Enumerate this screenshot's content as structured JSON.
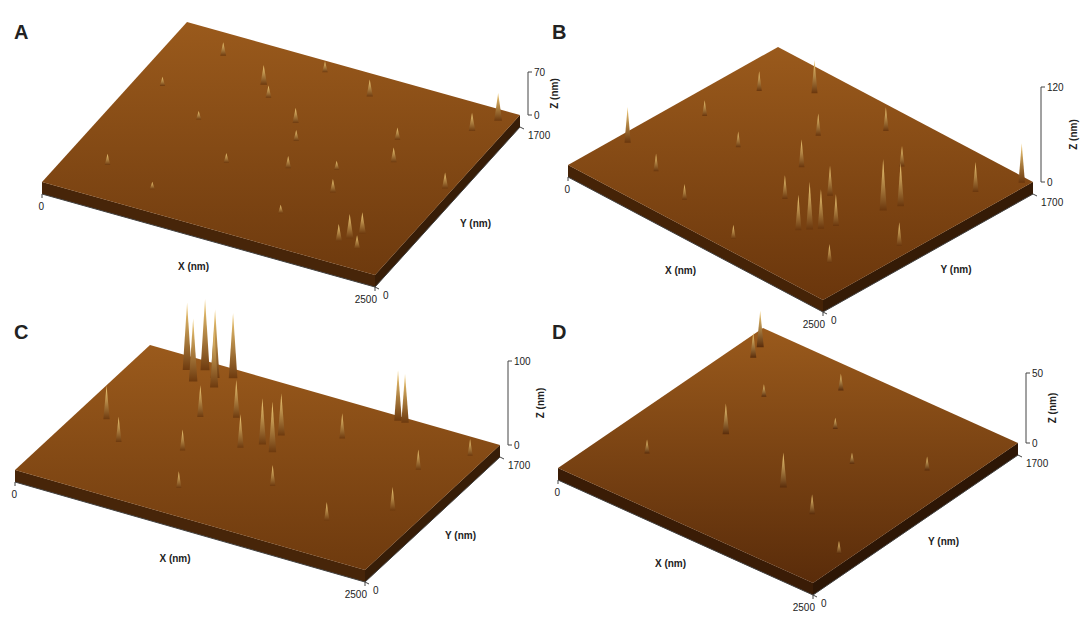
{
  "chart_data": [
    {
      "panel_label": "A",
      "type": "surface3d",
      "x_label": "X (nm)",
      "y_label": "Y (nm)",
      "z_label": "Z (nm)",
      "xlim": [
        0,
        2500
      ],
      "ylim": [
        0,
        1700
      ],
      "zlim": [
        0,
        70
      ],
      "xticks": [
        0,
        2500
      ],
      "yticks": [
        0,
        1700
      ],
      "zticks": [
        0,
        70
      ],
      "color": "#6e3a0e",
      "peaks": [
        [
          2150,
          250,
          40
        ],
        [
          2200,
          320,
          35
        ],
        [
          2100,
          200,
          28
        ],
        [
          2250,
          180,
          22
        ],
        [
          800,
          1350,
          32
        ],
        [
          900,
          1250,
          20
        ],
        [
          1200,
          1100,
          25
        ],
        [
          1300,
          950,
          18
        ],
        [
          1700,
          800,
          15
        ],
        [
          600,
          900,
          14
        ],
        [
          400,
          1500,
          22
        ],
        [
          1500,
          1500,
          28
        ],
        [
          2400,
          1600,
          45
        ],
        [
          2300,
          1450,
          30
        ],
        [
          1900,
          1200,
          20
        ],
        [
          1000,
          600,
          16
        ],
        [
          300,
          300,
          18
        ],
        [
          1600,
          300,
          14
        ],
        [
          2000,
          1000,
          24
        ],
        [
          700,
          200,
          12
        ],
        [
          1100,
          1600,
          18
        ],
        [
          1800,
          600,
          22
        ],
        [
          2450,
          900,
          26
        ],
        [
          200,
          1100,
          15
        ],
        [
          1400,
          700,
          20
        ]
      ]
    },
    {
      "panel_label": "B",
      "type": "surface3d",
      "x_label": "X (nm)",
      "y_label": "Y (nm)",
      "z_label": "Z (nm)",
      "xlim": [
        0,
        2500
      ],
      "ylim": [
        0,
        1700
      ],
      "zlim": [
        0,
        120
      ],
      "xticks": [
        0,
        2500
      ],
      "yticks": [
        0,
        1700
      ],
      "zticks": [
        0,
        120
      ],
      "color": "#6a360c",
      "peaks": [
        [
          1800,
          470,
          60
        ],
        [
          1850,
          520,
          50
        ],
        [
          1750,
          420,
          45
        ],
        [
          1900,
          600,
          40
        ],
        [
          2000,
          900,
          65
        ],
        [
          2050,
          1000,
          55
        ],
        [
          1600,
          800,
          38
        ],
        [
          1400,
          600,
          30
        ],
        [
          1200,
          900,
          35
        ],
        [
          1000,
          1200,
          28
        ],
        [
          600,
          1500,
          42
        ],
        [
          300,
          1300,
          25
        ],
        [
          2300,
          1400,
          38
        ],
        [
          2450,
          1650,
          50
        ],
        [
          100,
          400,
          45
        ],
        [
          500,
          300,
          22
        ],
        [
          900,
          200,
          20
        ],
        [
          1300,
          1500,
          30
        ],
        [
          1700,
          1300,
          26
        ],
        [
          2200,
          300,
          24
        ],
        [
          700,
          800,
          20
        ],
        [
          2400,
          700,
          30
        ],
        [
          1500,
          100,
          18
        ],
        [
          250,
          900,
          20
        ]
      ]
    },
    {
      "panel_label": "C",
      "type": "surface3d",
      "x_label": "X (nm)",
      "y_label": "Y (nm)",
      "z_label": "Z (nm)",
      "xlim": [
        0,
        2500
      ],
      "ylim": [
        0,
        1700
      ],
      "zlim": [
        0,
        100
      ],
      "xticks": [
        0,
        2500
      ],
      "yticks": [
        0,
        1700
      ],
      "zticks": [
        0,
        100
      ],
      "color": "#6e3a0e",
      "peaks": [
        [
          350,
          1550,
          80
        ],
        [
          450,
          1600,
          85
        ],
        [
          550,
          1550,
          82
        ],
        [
          650,
          1600,
          78
        ],
        [
          450,
          1450,
          75
        ],
        [
          600,
          1450,
          70
        ],
        [
          1200,
          1000,
          55
        ],
        [
          1300,
          950,
          60
        ],
        [
          1250,
          1150,
          50
        ],
        [
          1100,
          900,
          40
        ],
        [
          900,
          1200,
          45
        ],
        [
          700,
          1100,
          38
        ],
        [
          1800,
          1650,
          60
        ],
        [
          1850,
          1650,
          58
        ],
        [
          200,
          800,
          40
        ],
        [
          400,
          600,
          30
        ],
        [
          1500,
          600,
          25
        ],
        [
          2000,
          400,
          22
        ],
        [
          2300,
          700,
          28
        ],
        [
          2200,
          1200,
          24
        ],
        [
          1000,
          300,
          20
        ],
        [
          1600,
          1300,
          30
        ],
        [
          2400,
          1500,
          20
        ],
        [
          800,
          700,
          25
        ]
      ]
    },
    {
      "panel_label": "D",
      "type": "surface3d",
      "x_label": "X (nm)",
      "y_label": "Y (nm)",
      "z_label": "Z (nm)",
      "xlim": [
        0,
        2500
      ],
      "ylim": [
        0,
        1700
      ],
      "zlim": [
        0,
        50
      ],
      "xticks": [
        0,
        2500
      ],
      "yticks": [
        0,
        1700
      ],
      "zticks": [
        0,
        50
      ],
      "color": "#5a2c0a",
      "peaks": [
        [
          150,
          1550,
          26
        ],
        [
          200,
          1450,
          18
        ],
        [
          700,
          800,
          22
        ],
        [
          1500,
          600,
          25
        ],
        [
          1900,
          500,
          14
        ],
        [
          1000,
          1500,
          12
        ],
        [
          400,
          400,
          10
        ],
        [
          2200,
          1200,
          10
        ],
        [
          1300,
          1200,
          8
        ],
        [
          2400,
          300,
          9
        ],
        [
          600,
          1200,
          9
        ],
        [
          1700,
          1000,
          8
        ]
      ]
    }
  ]
}
